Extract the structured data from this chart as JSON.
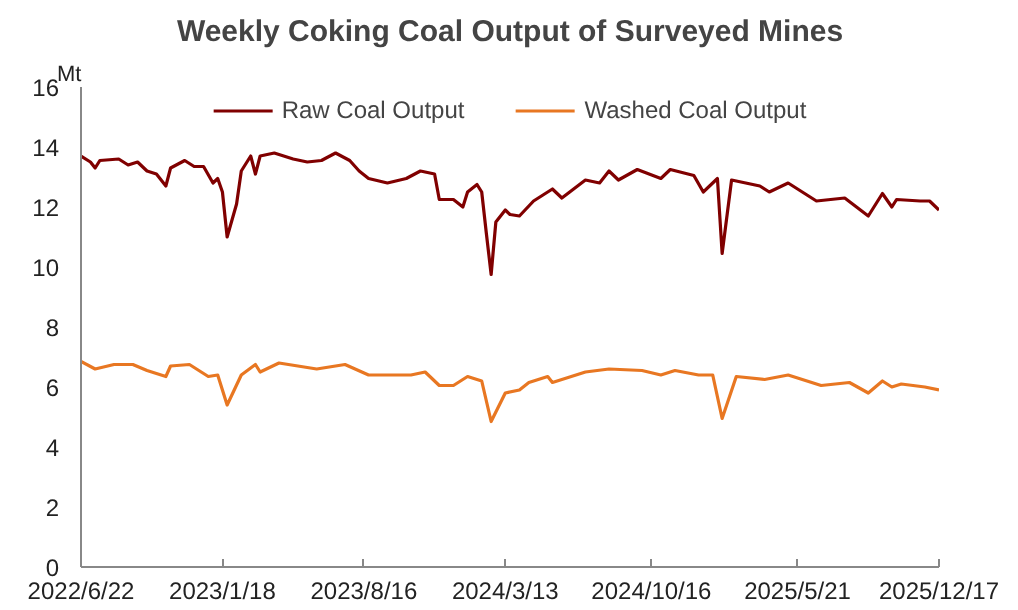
{
  "chart_data": {
    "type": "line",
    "title": "Weekly Coking Coal Output of Surveyed Mines",
    "ylabel": "Mt",
    "xlim": [
      "2022-06-22",
      "2025-12-17"
    ],
    "xticks": [
      {
        "value": "2022-06-22",
        "label": "2022/6/22"
      },
      {
        "value": "2023-01-18",
        "label": "2023/1/18"
      },
      {
        "value": "2023-08-16",
        "label": "2023/8/16"
      },
      {
        "value": "2024-03-13",
        "label": "2024/3/13"
      },
      {
        "value": "2024-10-16",
        "label": "2024/10/16"
      },
      {
        "value": "2025-05-21",
        "label": "2025/5/21"
      },
      {
        "value": "2025-12-17",
        "label": "2025/12/17"
      }
    ],
    "ylim": [
      0,
      16
    ],
    "yticks": [
      0,
      2,
      4,
      6,
      8,
      10,
      12,
      14,
      16
    ],
    "grid": false,
    "legend": "top",
    "line_style": "solid",
    "series": [
      {
        "name": "Raw Coal Output",
        "color": "#800000",
        "x": [
          "2022-06-22",
          "2022-07-06",
          "2022-07-13",
          "2022-07-20",
          "2022-08-17",
          "2022-08-31",
          "2022-09-14",
          "2022-09-28",
          "2022-10-12",
          "2022-10-26",
          "2022-11-02",
          "2022-11-23",
          "2022-12-07",
          "2022-12-21",
          "2023-01-04",
          "2023-01-11",
          "2023-01-18",
          "2023-01-25",
          "2023-02-08",
          "2023-02-15",
          "2023-03-01",
          "2023-03-08",
          "2023-03-15",
          "2023-04-05",
          "2023-05-03",
          "2023-05-24",
          "2023-06-14",
          "2023-07-05",
          "2023-07-26",
          "2023-08-09",
          "2023-08-23",
          "2023-09-20",
          "2023-10-18",
          "2023-11-08",
          "2023-11-29",
          "2023-12-06",
          "2023-12-27",
          "2024-01-10",
          "2024-01-17",
          "2024-01-31",
          "2024-02-07",
          "2024-02-14",
          "2024-02-21",
          "2024-02-28",
          "2024-03-13",
          "2024-03-20",
          "2024-04-03",
          "2024-04-24",
          "2024-05-22",
          "2024-06-05",
          "2024-07-10",
          "2024-07-31",
          "2024-08-14",
          "2024-08-28",
          "2024-09-25",
          "2024-10-30",
          "2024-11-13",
          "2024-12-18",
          "2025-01-01",
          "2025-01-22",
          "2025-01-29",
          "2025-02-12",
          "2025-03-26",
          "2025-04-09",
          "2025-05-07",
          "2025-06-18",
          "2025-07-30",
          "2025-09-03",
          "2025-09-24",
          "2025-10-08",
          "2025-10-15",
          "2025-11-19",
          "2025-12-03",
          "2025-12-17"
        ],
        "values": [
          13.7,
          13.5,
          13.3,
          13.55,
          13.6,
          13.4,
          13.5,
          13.2,
          13.1,
          12.7,
          13.3,
          13.55,
          13.35,
          13.35,
          12.8,
          12.95,
          12.5,
          11.0,
          12.1,
          13.2,
          13.7,
          13.1,
          13.7,
          13.8,
          13.6,
          13.5,
          13.55,
          13.8,
          13.55,
          13.2,
          12.95,
          12.8,
          12.95,
          13.2,
          13.1,
          12.25,
          12.25,
          12.0,
          12.5,
          12.75,
          12.5,
          11.1,
          9.75,
          11.5,
          11.9,
          11.75,
          11.7,
          12.2,
          12.6,
          12.3,
          12.9,
          12.8,
          13.2,
          12.9,
          13.25,
          12.95,
          13.25,
          13.05,
          12.5,
          12.95,
          10.45,
          12.9,
          12.7,
          12.5,
          12.8,
          12.2,
          12.3,
          11.7,
          12.45,
          12.0,
          12.25,
          12.2,
          12.2,
          11.9
        ]
      },
      {
        "name": "Washed Coal Output",
        "color": "#e87722",
        "x": [
          "2022-06-22",
          "2022-07-13",
          "2022-08-10",
          "2022-09-07",
          "2022-09-28",
          "2022-10-26",
          "2022-11-02",
          "2022-11-30",
          "2022-12-28",
          "2023-01-11",
          "2023-01-25",
          "2023-02-15",
          "2023-03-08",
          "2023-03-15",
          "2023-04-12",
          "2023-06-07",
          "2023-07-19",
          "2023-08-23",
          "2023-10-25",
          "2023-11-15",
          "2023-12-06",
          "2023-12-27",
          "2024-01-17",
          "2024-02-07",
          "2024-02-21",
          "2024-03-13",
          "2024-04-03",
          "2024-04-17",
          "2024-05-15",
          "2024-05-22",
          "2024-07-10",
          "2024-08-14",
          "2024-10-02",
          "2024-10-30",
          "2024-11-20",
          "2024-12-25",
          "2025-01-15",
          "2025-01-29",
          "2025-02-19",
          "2025-04-02",
          "2025-05-07",
          "2025-06-25",
          "2025-08-06",
          "2025-09-03",
          "2025-09-24",
          "2025-10-08",
          "2025-10-22",
          "2025-11-26",
          "2025-12-17"
        ],
        "values": [
          6.85,
          6.6,
          6.75,
          6.75,
          6.55,
          6.35,
          6.7,
          6.75,
          6.35,
          6.4,
          5.4,
          6.4,
          6.75,
          6.5,
          6.8,
          6.6,
          6.75,
          6.4,
          6.4,
          6.5,
          6.05,
          6.05,
          6.35,
          6.2,
          4.85,
          5.8,
          5.9,
          6.15,
          6.35,
          6.15,
          6.5,
          6.6,
          6.55,
          6.4,
          6.55,
          6.4,
          6.4,
          4.95,
          6.35,
          6.25,
          6.4,
          6.05,
          6.15,
          5.8,
          6.2,
          6.0,
          6.1,
          6.0,
          5.9
        ]
      }
    ]
  }
}
